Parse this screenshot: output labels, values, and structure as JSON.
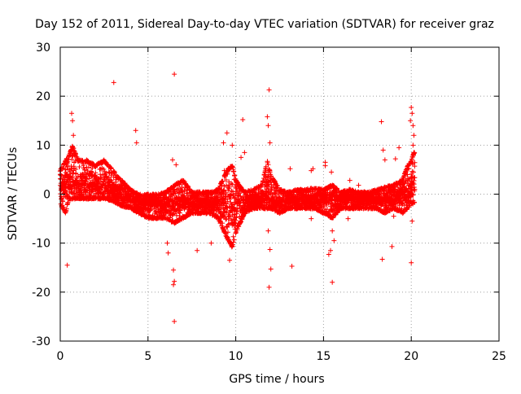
{
  "chart_data": {
    "type": "scatter",
    "title": "Day 152 of 2011, Sidereal Day-to-day VTEC variation (SDTVAR) for receiver graz",
    "xlabel": "GPS time / hours",
    "ylabel": "SDTVAR / TECUs",
    "xlim": [
      0,
      25
    ],
    "ylim": [
      -30,
      30
    ],
    "xticks": [
      0,
      5,
      10,
      15,
      20,
      25
    ],
    "yticks": [
      -30,
      -20,
      -10,
      0,
      10,
      20,
      30
    ],
    "grid": true,
    "marker": "+",
    "colors": {
      "series": "#ff0000",
      "axes": "#000000",
      "grid": "#a0a0a0"
    },
    "series": [
      {
        "name": "SDTVAR",
        "envelope": {
          "hours": [
            0.0,
            0.3,
            0.5,
            0.7,
            1.0,
            1.5,
            2.0,
            2.5,
            3.0,
            3.5,
            4.0,
            4.5,
            5.0,
            5.5,
            6.0,
            6.5,
            7.0,
            7.5,
            8.0,
            8.5,
            9.0,
            9.5,
            9.8,
            10.0,
            10.5,
            11.0,
            11.5,
            11.8,
            12.0,
            12.5,
            13.0,
            13.5,
            14.0,
            14.5,
            15.0,
            15.5,
            16.0,
            16.5,
            17.0,
            17.5,
            18.0,
            18.5,
            19.0,
            19.5,
            19.8,
            20.0,
            20.2
          ],
          "upper": [
            5,
            7,
            8,
            10,
            7,
            7,
            6,
            7,
            5,
            3,
            1,
            0,
            0,
            0,
            0.5,
            2,
            3,
            0.5,
            0.5,
            0.5,
            1,
            5,
            6,
            3,
            0.5,
            1,
            2,
            7,
            4,
            1,
            0.5,
            1,
            1,
            1.5,
            1,
            2,
            0.5,
            1,
            0.5,
            0.5,
            1,
            1.5,
            2,
            3,
            6,
            7,
            9
          ],
          "lower": [
            -2,
            -4,
            -1,
            -1,
            -1,
            -1,
            -1,
            -1,
            -1.5,
            -2.5,
            -3,
            -4,
            -5,
            -5,
            -5,
            -6,
            -5,
            -4,
            -4,
            -4,
            -5,
            -9,
            -11,
            -8,
            -4,
            -3,
            -3,
            -3,
            -3,
            -4,
            -3,
            -3,
            -3,
            -3,
            -4,
            -5,
            -3,
            -3,
            -3,
            -3,
            -3,
            -4,
            -3,
            -4,
            -3,
            -2,
            -2
          ],
          "center": [
            2,
            2,
            2,
            3,
            2,
            2,
            2,
            2,
            1,
            0,
            -1,
            -2,
            -2,
            -2,
            -2,
            -2,
            -1,
            -2,
            -2,
            -2,
            -2,
            -2,
            -2,
            -2,
            -2,
            -1,
            -1,
            0,
            -1,
            -2,
            -1,
            -1,
            -1,
            -1,
            -1,
            -1,
            -1,
            -1,
            -1,
            -1,
            -1,
            -1,
            -1,
            0,
            0,
            1,
            2
          ]
        },
        "outliers": [
          {
            "x": 0.4,
            "y": -14.5
          },
          {
            "x": 0.65,
            "y": 16.5
          },
          {
            "x": 0.7,
            "y": 15
          },
          {
            "x": 0.75,
            "y": 12
          },
          {
            "x": 3.05,
            "y": 22.8
          },
          {
            "x": 4.3,
            "y": 13
          },
          {
            "x": 4.35,
            "y": 10.5
          },
          {
            "x": 6.15,
            "y": -12
          },
          {
            "x": 6.1,
            "y": -10
          },
          {
            "x": 6.5,
            "y": 24.5
          },
          {
            "x": 6.5,
            "y": -26
          },
          {
            "x": 6.45,
            "y": -18.5
          },
          {
            "x": 6.5,
            "y": -17.8
          },
          {
            "x": 6.45,
            "y": -15.5
          },
          {
            "x": 6.4,
            "y": 7
          },
          {
            "x": 6.6,
            "y": 6
          },
          {
            "x": 7.8,
            "y": -11.5
          },
          {
            "x": 8.6,
            "y": -10
          },
          {
            "x": 9.3,
            "y": 10.5
          },
          {
            "x": 9.35,
            "y": 4.8
          },
          {
            "x": 9.5,
            "y": 12.5
          },
          {
            "x": 9.65,
            "y": -13.5
          },
          {
            "x": 9.8,
            "y": 10
          },
          {
            "x": 10.3,
            "y": 7.5
          },
          {
            "x": 10.4,
            "y": 15.2
          },
          {
            "x": 10.5,
            "y": 8.5
          },
          {
            "x": 11.8,
            "y": 15.8
          },
          {
            "x": 11.9,
            "y": 21.3
          },
          {
            "x": 11.85,
            "y": 14
          },
          {
            "x": 11.95,
            "y": 10.5
          },
          {
            "x": 11.9,
            "y": -19
          },
          {
            "x": 12.0,
            "y": -15.3
          },
          {
            "x": 11.95,
            "y": -11.3
          },
          {
            "x": 11.85,
            "y": -7.5
          },
          {
            "x": 13.1,
            "y": 5.2
          },
          {
            "x": 13.2,
            "y": -14.7
          },
          {
            "x": 14.3,
            "y": 4.8
          },
          {
            "x": 14.4,
            "y": 5.2
          },
          {
            "x": 14.3,
            "y": -5
          },
          {
            "x": 15.1,
            "y": 5.8
          },
          {
            "x": 15.1,
            "y": 6.5
          },
          {
            "x": 15.3,
            "y": -12.3
          },
          {
            "x": 15.4,
            "y": -11.5
          },
          {
            "x": 15.5,
            "y": -18
          },
          {
            "x": 15.45,
            "y": 4.5
          },
          {
            "x": 15.5,
            "y": -7.5
          },
          {
            "x": 15.6,
            "y": -9.5
          },
          {
            "x": 16.4,
            "y": -5
          },
          {
            "x": 16.5,
            "y": 2.8
          },
          {
            "x": 17.0,
            "y": 1.8
          },
          {
            "x": 18.3,
            "y": 14.8
          },
          {
            "x": 18.35,
            "y": -13.3
          },
          {
            "x": 18.4,
            "y": 9
          },
          {
            "x": 18.5,
            "y": 7
          },
          {
            "x": 18.9,
            "y": -10.7
          },
          {
            "x": 19.0,
            "y": -4.5
          },
          {
            "x": 19.1,
            "y": 7.2
          },
          {
            "x": 19.3,
            "y": 9.5
          },
          {
            "x": 20.0,
            "y": 17.7
          },
          {
            "x": 20.05,
            "y": 16.5
          },
          {
            "x": 19.95,
            "y": 15
          },
          {
            "x": 20.1,
            "y": 14
          },
          {
            "x": 20.15,
            "y": 12
          },
          {
            "x": 20.0,
            "y": -14
          },
          {
            "x": 20.05,
            "y": -5.5
          },
          {
            "x": 20.1,
            "y": 10
          }
        ]
      }
    ]
  }
}
